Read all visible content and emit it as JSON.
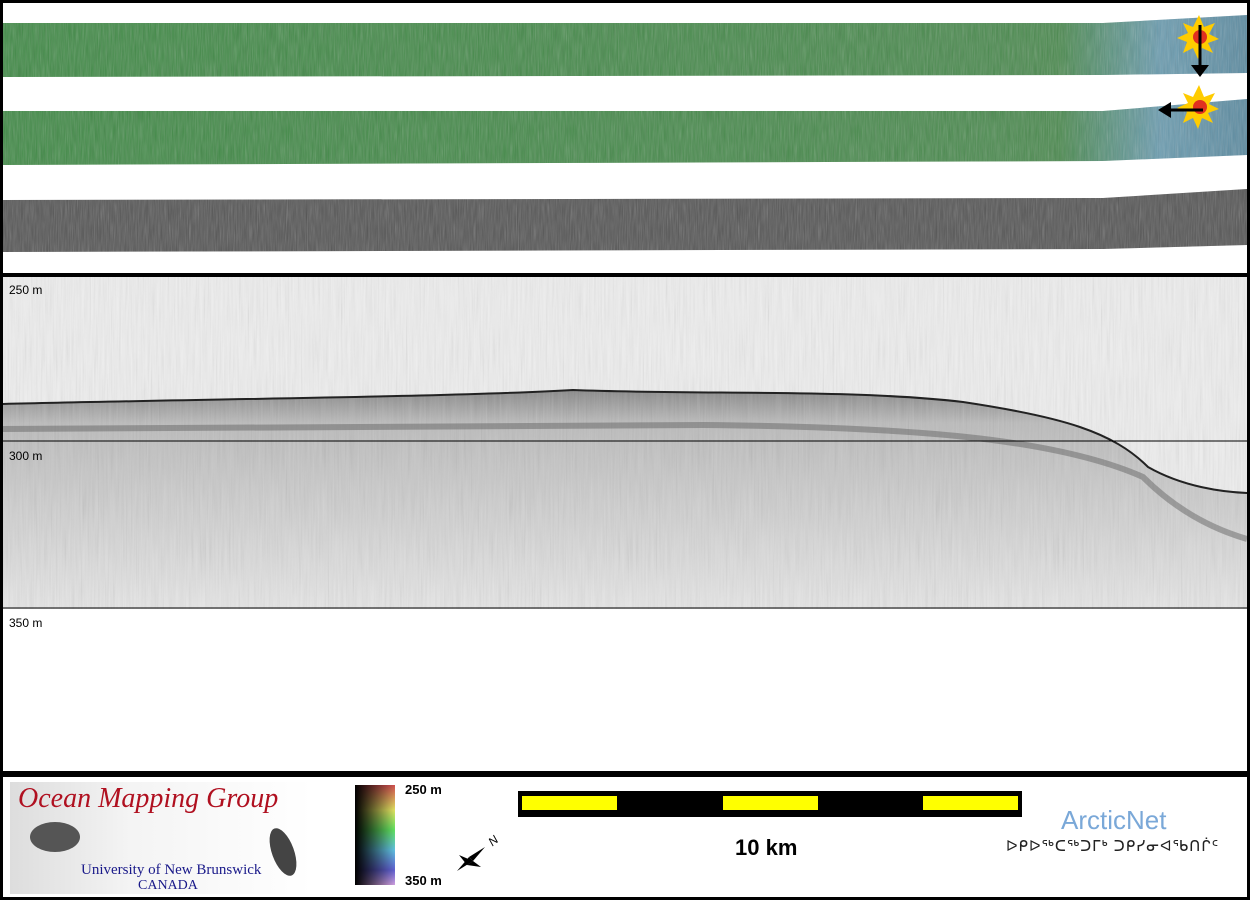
{
  "profile": {
    "depth_labels": [
      "250 m",
      "300 m",
      "350 m"
    ]
  },
  "legend": {
    "logo_title": "Ocean Mapping Group",
    "logo_university": "University of New Brunswick",
    "logo_country": "CANADA",
    "colorbar_top": "250 m",
    "colorbar_bottom": "350 m",
    "north_label": "N",
    "scale_label": "10 km",
    "partner_name": "ArcticNet",
    "partner_syllabics": "ᐅᑭᐅᖅᑕᖅᑐᒥᒃ ᑐᑭᓯᓂᐊᖃᑎᒌᑦ"
  },
  "colors": {
    "bathymetry_green": "#3f8a45",
    "bathymetry_blue": "#6a9cb0",
    "backscatter_gray": "#555555",
    "scale_yellow": "#ffff00",
    "logo_red": "#b01020",
    "arcticnet_blue": "#7aa8d8"
  }
}
